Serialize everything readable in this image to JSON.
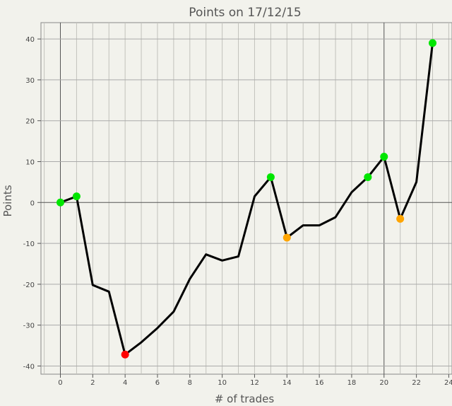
{
  "chart_data": {
    "type": "line",
    "title": "Points on 17/12/15",
    "xlabel": "# of trades",
    "ylabel": "Points",
    "xlim": [
      -1.2,
      24.2
    ],
    "ylim": [
      -42,
      44
    ],
    "xticks": [
      0,
      2,
      4,
      6,
      8,
      10,
      12,
      14,
      16,
      18,
      20,
      22,
      24
    ],
    "yticks": [
      -40,
      -30,
      -20,
      -10,
      0,
      10,
      20,
      30,
      40
    ],
    "grid": true,
    "series": [
      {
        "x": [
          0,
          1,
          2,
          3,
          4,
          5,
          6,
          7,
          8,
          9,
          10,
          11,
          12,
          13,
          14,
          15,
          16,
          17,
          18,
          19,
          20,
          21,
          22,
          23
        ],
        "values": [
          0,
          1.5,
          -20.2,
          -21.8,
          -37.2,
          -34.2,
          -30.7,
          -26.7,
          -18.7,
          -12.7,
          -14.2,
          -13.2,
          1.5,
          6.2,
          -8.6,
          -5.6,
          -5.6,
          -3.6,
          2.5,
          6.2,
          11.2,
          -4,
          5,
          39
        ],
        "color": "#000000"
      }
    ],
    "markers": [
      {
        "x": 0,
        "y": 0,
        "color": "#00e600"
      },
      {
        "x": 1,
        "y": 1.5,
        "color": "#00e600"
      },
      {
        "x": 4,
        "y": -37.2,
        "color": "#ff0000"
      },
      {
        "x": 13,
        "y": 6.2,
        "color": "#00e600"
      },
      {
        "x": 14,
        "y": -8.6,
        "color": "#ffa500"
      },
      {
        "x": 19,
        "y": 6.2,
        "color": "#00e600"
      },
      {
        "x": 20,
        "y": 11.2,
        "color": "#00e600"
      },
      {
        "x": 21,
        "y": -4,
        "color": "#ffa500"
      },
      {
        "x": 23,
        "y": 39,
        "color": "#00e600"
      }
    ]
  }
}
